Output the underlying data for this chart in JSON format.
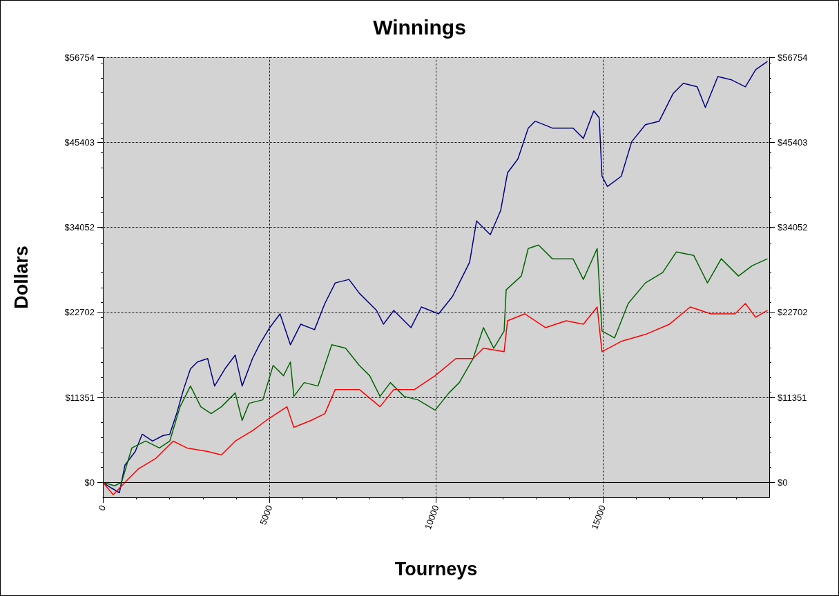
{
  "chart_data": {
    "type": "line",
    "title": "Winnings",
    "xlabel": "Tourneys",
    "ylabel": "Dollars",
    "xlim": [
      0,
      20000
    ],
    "xticks": [
      0,
      5000,
      10000,
      15000
    ],
    "ylim": [
      -2000,
      56754
    ],
    "yticks": [
      {
        "value": 0,
        "label": "$0"
      },
      {
        "value": 11351,
        "label": "$11351"
      },
      {
        "value": 22702,
        "label": "$22702"
      },
      {
        "value": 34052,
        "label": "$34052"
      },
      {
        "value": 45403,
        "label": "$45403"
      },
      {
        "value": 56754,
        "label": "$56754"
      }
    ],
    "y2lim": [
      -2000,
      56754
    ],
    "y2ticks": [
      {
        "value": 0,
        "label": "$0"
      },
      {
        "value": 11351,
        "label": "$11351"
      },
      {
        "value": 22702,
        "label": "$22702"
      },
      {
        "value": 34052,
        "label": "$34052"
      },
      {
        "value": 45403,
        "label": "$45403"
      },
      {
        "value": 56754,
        "label": "$56754"
      }
    ],
    "grid": true,
    "marker": "none",
    "line_style": "solid",
    "ref_lines": [
      {
        "axis": "y",
        "value": 0,
        "color": "#000000"
      }
    ],
    "series": [
      {
        "color": "#000080",
        "x": [
          0,
          248,
          496,
          662,
          972,
          1180,
          1490,
          1800,
          2007,
          2214,
          2420,
          2628,
          2835,
          3145,
          3352,
          3662,
          3972,
          4180,
          4490,
          4697,
          5007,
          5317,
          5628,
          5938,
          6352,
          6662,
          6973,
          7386,
          7697,
          8214,
          8421,
          8731,
          9248,
          9559,
          10076,
          10490,
          10697,
          11007,
          11214,
          11628,
          11938,
          12145,
          12455,
          12766,
          12973,
          13490,
          14111,
          14421,
          14731,
          14897,
          14980,
          15145,
          15559,
          15869,
          16283,
          16697,
          17111,
          17421,
          17835,
          18083,
          18456,
          18870,
          19284,
          19594,
          19946
        ],
        "values": [
          0,
          -735,
          -1380,
          2300,
          4130,
          6430,
          5510,
          6245,
          6430,
          9180,
          12400,
          15150,
          16070,
          16530,
          12860,
          15150,
          16990,
          12860,
          16530,
          18370,
          20660,
          22500,
          18370,
          21120,
          20390,
          23880,
          26630,
          27090,
          25250,
          22960,
          21120,
          22960,
          20660,
          23420,
          22500,
          24800,
          26630,
          29390,
          34900,
          33060,
          36280,
          41330,
          43170,
          47300,
          48220,
          47300,
          47300,
          45920,
          49590,
          48680,
          40870,
          39490,
          40870,
          45460,
          47760,
          48220,
          51890,
          53270,
          52810,
          50050,
          54180,
          53730,
          52810,
          55100,
          56200
        ]
      },
      {
        "color": "#006400",
        "x": [
          0,
          352,
          559,
          869,
          1283,
          1697,
          2007,
          2317,
          2628,
          2938,
          3249,
          3559,
          3972,
          4180,
          4387,
          4800,
          5110,
          5421,
          5628,
          5731,
          6042,
          6455,
          6869,
          7283,
          7697,
          8007,
          8318,
          8628,
          9042,
          9455,
          9972,
          10386,
          10697,
          11111,
          11421,
          11731,
          12042,
          12104,
          12559,
          12766,
          13076,
          13490,
          14111,
          14421,
          14835,
          14980,
          15359,
          15766,
          16283,
          16800,
          17214,
          17731,
          18145,
          18559,
          19076,
          19490,
          19946
        ],
        "values": [
          0,
          -460,
          0,
          4590,
          5510,
          4590,
          5510,
          10100,
          12860,
          10100,
          9180,
          10100,
          11940,
          8270,
          10560,
          11020,
          15610,
          14240,
          16070,
          11480,
          13320,
          12860,
          18370,
          17910,
          15610,
          14240,
          11480,
          13320,
          11480,
          11020,
          9640,
          11940,
          13320,
          16530,
          20660,
          17910,
          20200,
          25710,
          27550,
          31220,
          31680,
          29850,
          29850,
          27090,
          31220,
          20200,
          19290,
          23880,
          26630,
          28010,
          30770,
          30310,
          26630,
          29850,
          27550,
          28930,
          29850
        ]
      },
      {
        "color": "#ff0000",
        "x": [
          0,
          310,
          662,
          1076,
          1593,
          2110,
          2524,
          3145,
          3559,
          3972,
          4490,
          4904,
          5524,
          5731,
          6248,
          6662,
          6973,
          7697,
          8318,
          8731,
          9352,
          9972,
          10593,
          11111,
          11421,
          12042,
          12145,
          12662,
          13283,
          13904,
          14421,
          14835,
          14980,
          15559,
          16283,
          17007,
          17628,
          18249,
          18973,
          19283,
          19594,
          19946
        ],
        "values": [
          0,
          -1650,
          0,
          1840,
          3220,
          5510,
          4590,
          4130,
          3670,
          5510,
          6890,
          8270,
          10100,
          7350,
          8270,
          9180,
          12400,
          12400,
          10100,
          12400,
          12400,
          14240,
          16530,
          16530,
          17910,
          17450,
          21580,
          22500,
          20660,
          21580,
          21120,
          23420,
          17450,
          18830,
          19750,
          21120,
          23420,
          22500,
          22500,
          23880,
          22040,
          22960
        ]
      }
    ]
  }
}
